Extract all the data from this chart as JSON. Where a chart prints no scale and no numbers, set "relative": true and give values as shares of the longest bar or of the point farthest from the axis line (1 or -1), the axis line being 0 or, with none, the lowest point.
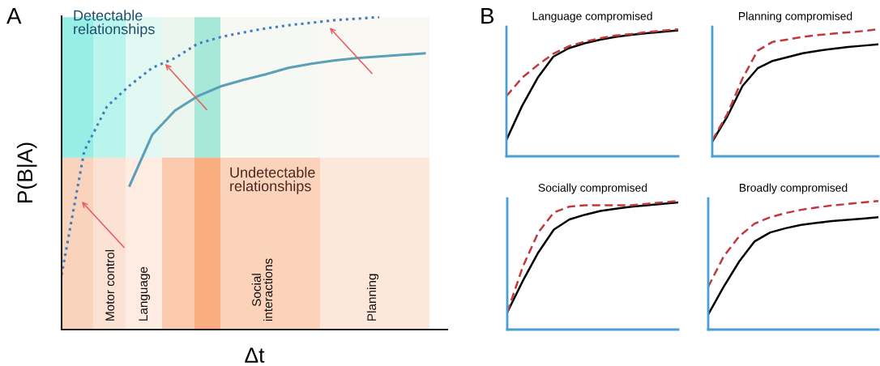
{
  "chart_data": [
    {
      "type": "line",
      "relative": true,
      "xlabel": "Δt",
      "ylabel": "P(B|A)",
      "marker": "none",
      "categories": [
        null,
        null,
        null,
        null,
        null,
        null,
        null,
        null,
        null,
        null,
        null,
        null,
        null,
        null,
        null,
        null,
        null,
        null
      ],
      "series": [
        {
          "color": "#3f7fbf",
          "line_style": "dotted",
          "values": [
            0.175,
            0.572,
            0.714,
            0.781,
            0.838,
            0.869,
            0.915,
            0.936,
            0.951,
            0.964,
            0.974,
            0.982,
            0.99,
            0.995,
            1.0,
            null,
            null,
            null
          ]
        },
        {
          "color": "#5b9fb8",
          "line_style": "solid",
          "values": [
            null,
            null,
            null,
            0.461,
            0.624,
            0.701,
            0.747,
            0.778,
            0.799,
            0.817,
            0.838,
            0.851,
            0.861,
            0.869,
            0.874,
            0.879,
            0.884,
            null
          ]
        }
      ],
      "annotations": [
        "A",
        "Detectable\nrelationships",
        "Undetectable\nrelationships",
        "Motor control",
        "Language",
        "Social\ninteractions",
        "Planning"
      ]
    },
    {
      "type": "line",
      "relative": true,
      "title": "Language compromised",
      "marker": "none",
      "categories": [
        null,
        null,
        null,
        null,
        null,
        null,
        null,
        null,
        null,
        null,
        null,
        null
      ],
      "series": [
        {
          "color": "#000000",
          "line_style": "solid",
          "values": [
            0.129,
            0.396,
            0.618,
            0.784,
            0.851,
            0.889,
            0.918,
            0.94,
            0.956,
            0.969,
            0.98,
            0.991
          ]
        },
        {
          "color": "#c0393b",
          "line_style": "dashed",
          "values": [
            0.473,
            0.618,
            0.718,
            0.807,
            0.867,
            0.902,
            0.929,
            0.951,
            0.962,
            0.978,
            0.989,
            1.0
          ]
        }
      ],
      "annotations": [
        "B"
      ]
    },
    {
      "type": "line",
      "relative": true,
      "title": "Planning compromised",
      "marker": "none",
      "categories": [
        null,
        null,
        null,
        null,
        null,
        null,
        null,
        null,
        null,
        null,
        null,
        null
      ],
      "series": [
        {
          "color": "#000000",
          "line_style": "solid",
          "values": [
            0.115,
            0.314,
            0.553,
            0.692,
            0.751,
            0.781,
            0.811,
            0.831,
            0.847,
            0.861,
            0.871,
            0.881
          ]
        },
        {
          "color": "#c0393b",
          "line_style": "dashed",
          "values": [
            0.125,
            0.334,
            0.612,
            0.831,
            0.901,
            0.92,
            0.94,
            0.954,
            0.966,
            0.976,
            0.986,
            1.0
          ]
        }
      ]
    },
    {
      "type": "line",
      "relative": true,
      "title": "Socially compromised",
      "marker": "none",
      "categories": [
        null,
        null,
        null,
        null,
        null,
        null,
        null,
        null,
        null,
        null,
        null,
        null
      ],
      "series": [
        {
          "color": "#000000",
          "line_style": "solid",
          "values": [
            0.133,
            0.378,
            0.6,
            0.778,
            0.856,
            0.893,
            0.922,
            0.94,
            0.956,
            0.967,
            0.978,
            0.989
          ]
        },
        {
          "color": "#c0393b",
          "line_style": "dashed",
          "values": [
            0.133,
            0.489,
            0.756,
            0.911,
            0.956,
            0.967,
            0.967,
            0.967,
            0.967,
            0.978,
            0.989,
            1.0
          ]
        }
      ]
    },
    {
      "type": "line",
      "relative": true,
      "title": "Broadly compromised",
      "marker": "none",
      "categories": [
        null,
        null,
        null,
        null,
        null,
        null,
        null,
        null,
        null,
        null,
        null,
        null
      ],
      "series": [
        {
          "color": "#000000",
          "line_style": "solid",
          "values": [
            0.118,
            0.333,
            0.529,
            0.686,
            0.755,
            0.788,
            0.814,
            0.829,
            0.843,
            0.853,
            0.863,
            0.873
          ]
        },
        {
          "color": "#c0393b",
          "line_style": "dashed",
          "values": [
            0.333,
            0.569,
            0.725,
            0.824,
            0.873,
            0.906,
            0.931,
            0.949,
            0.965,
            0.976,
            0.988,
            1.0
          ]
        }
      ]
    }
  ]
}
